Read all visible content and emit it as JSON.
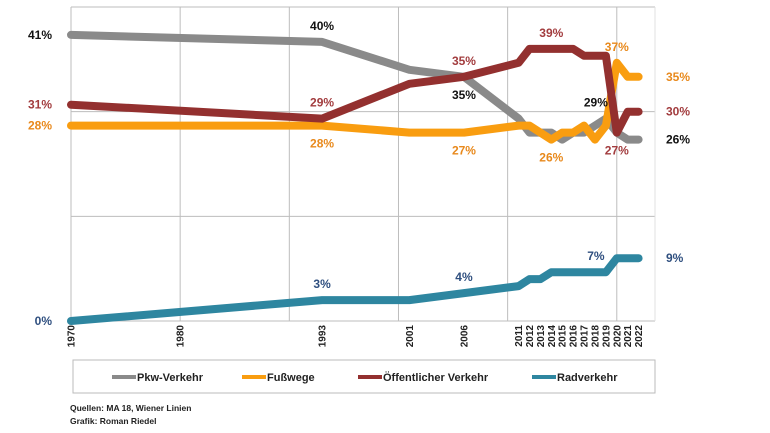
{
  "chart_data": {
    "type": "line",
    "title": "",
    "xlabel": "",
    "ylabel": "",
    "xlim": [
      1970,
      2023.5
    ],
    "ylim": [
      0,
      45
    ],
    "y_grid_step": 15,
    "x_grid_step": 10,
    "grid": true,
    "legend_position": "bottom",
    "x_tick_labels": [
      "1970",
      "1980",
      "1993",
      "2001",
      "2006",
      "2011",
      "2012",
      "2013",
      "2014",
      "2015",
      "2016",
      "2017",
      "2018",
      "2019",
      "2020",
      "2021",
      "2022"
    ],
    "series": [
      {
        "name": "Pkw-Verkehr",
        "color": "#8a8a8a",
        "label_color": "#111111",
        "x": [
          1970,
          1993,
          2001,
          2006,
          2011,
          2012,
          2013,
          2014,
          2015,
          2016,
          2017,
          2018,
          2019,
          2020,
          2021,
          2022
        ],
        "values": [
          41,
          40,
          36,
          35,
          29,
          27,
          27,
          27,
          26,
          27,
          27,
          28,
          29,
          27,
          26,
          26
        ]
      },
      {
        "name": "Fußwege",
        "color": "#f99d10",
        "label_color": "#e8891c",
        "x": [
          1970,
          1993,
          2001,
          2006,
          2011,
          2012,
          2013,
          2014,
          2015,
          2016,
          2017,
          2018,
          2019,
          2020,
          2021,
          2022
        ],
        "values": [
          28,
          28,
          27,
          27,
          28,
          28,
          27,
          26,
          27,
          27,
          28,
          26,
          28,
          37,
          35,
          35
        ]
      },
      {
        "name": "Öffentlicher Verkehr",
        "color": "#93302f",
        "label_color": "#a23c3e",
        "x": [
          1970,
          1993,
          2001,
          2006,
          2011,
          2012,
          2013,
          2014,
          2015,
          2016,
          2017,
          2018,
          2019,
          2020,
          2021,
          2022
        ],
        "values": [
          31,
          29,
          34,
          35,
          37,
          39,
          39,
          39,
          39,
          39,
          38,
          38,
          38,
          27,
          30,
          30
        ]
      },
      {
        "name": "Radverkehr",
        "color": "#2e86a0",
        "label_color": "#2f4f7f",
        "x": [
          1970,
          1993,
          2001,
          2006,
          2011,
          2012,
          2013,
          2014,
          2015,
          2016,
          2017,
          2018,
          2019,
          2020,
          2021,
          2022
        ],
        "values": [
          0,
          3,
          3,
          4,
          5,
          6,
          6,
          7,
          7,
          7,
          7,
          7,
          7,
          9,
          9,
          9
        ]
      }
    ],
    "annotations": [
      {
        "text": "41%",
        "series": 0,
        "x": 1970,
        "pos": "left"
      },
      {
        "text": "40%",
        "series": 0,
        "x": 1993,
        "pos": "above"
      },
      {
        "text": "35%",
        "series": 0,
        "x": 2006,
        "pos": "below"
      },
      {
        "text": "29%",
        "series": 0,
        "x": 2019,
        "pos": "above-left"
      },
      {
        "text": "26%",
        "series": 0,
        "x": 2022,
        "pos": "right"
      },
      {
        "text": "28%",
        "series": 1,
        "x": 1970,
        "pos": "left"
      },
      {
        "text": "28%",
        "series": 1,
        "x": 1993,
        "pos": "below"
      },
      {
        "text": "27%",
        "series": 1,
        "x": 2006,
        "pos": "below"
      },
      {
        "text": "26%",
        "series": 1,
        "x": 2014,
        "pos": "below"
      },
      {
        "text": "37%",
        "series": 1,
        "x": 2020,
        "pos": "above"
      },
      {
        "text": "35%",
        "series": 1,
        "x": 2022,
        "pos": "right"
      },
      {
        "text": "31%",
        "series": 2,
        "x": 1970,
        "pos": "left"
      },
      {
        "text": "29%",
        "series": 2,
        "x": 1993,
        "pos": "above"
      },
      {
        "text": "35%",
        "series": 2,
        "x": 2006,
        "pos": "above"
      },
      {
        "text": "39%",
        "series": 2,
        "x": 2014,
        "pos": "above"
      },
      {
        "text": "27%",
        "series": 2,
        "x": 2020,
        "pos": "below"
      },
      {
        "text": "30%",
        "series": 2,
        "x": 2022,
        "pos": "right"
      },
      {
        "text": "0%",
        "series": 3,
        "x": 1970,
        "pos": "left"
      },
      {
        "text": "3%",
        "series": 3,
        "x": 1993,
        "pos": "above"
      },
      {
        "text": "4%",
        "series": 3,
        "x": 2006,
        "pos": "above"
      },
      {
        "text": "7%",
        "series": 3,
        "x": 2019,
        "pos": "above-left"
      },
      {
        "text": "9%",
        "series": 3,
        "x": 2022,
        "pos": "right"
      }
    ]
  },
  "footer": {
    "sources": "Quellen: MA 18, Wiener Linien",
    "credit": "Grafik: Roman Riedel"
  }
}
